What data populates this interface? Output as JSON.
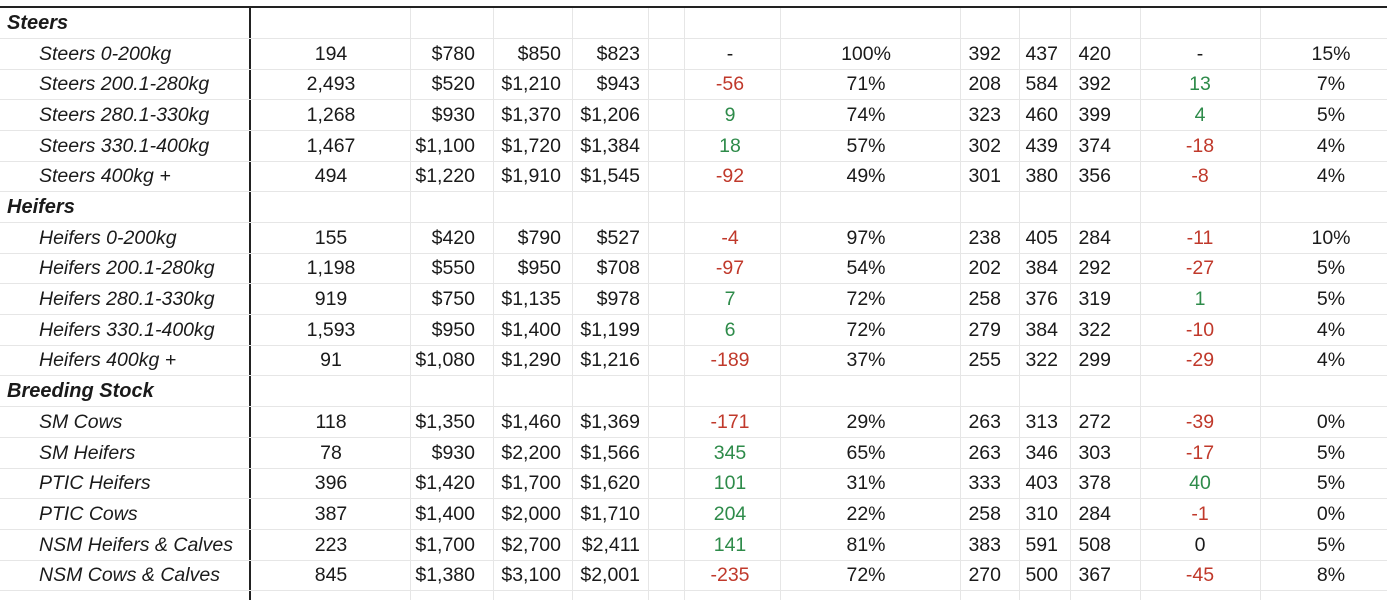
{
  "sections": [
    {
      "title": "Steers",
      "rows": [
        {
          "label": "Steers 0-200kg",
          "head": "194",
          "min": "$780",
          "max": "$850",
          "avg": "$823",
          "change": "-",
          "pct1": "100%",
          "c1": "392",
          "c2": "437",
          "c3": "420",
          "change2": "-",
          "pct2": "15%"
        },
        {
          "label": "Steers 200.1-280kg",
          "head": "2,493",
          "min": "$520",
          "max": "$1,210",
          "avg": "$943",
          "change": "-56",
          "pct1": "71%",
          "c1": "208",
          "c2": "584",
          "c3": "392",
          "change2": "13",
          "pct2": "7%"
        },
        {
          "label": "Steers 280.1-330kg",
          "head": "1,268",
          "min": "$930",
          "max": "$1,370",
          "avg": "$1,206",
          "change": "9",
          "pct1": "74%",
          "c1": "323",
          "c2": "460",
          "c3": "399",
          "change2": "4",
          "pct2": "5%"
        },
        {
          "label": "Steers 330.1-400kg",
          "head": "1,467",
          "min": "$1,100",
          "max": "$1,720",
          "avg": "$1,384",
          "change": "18",
          "pct1": "57%",
          "c1": "302",
          "c2": "439",
          "c3": "374",
          "change2": "-18",
          "pct2": "4%"
        },
        {
          "label": "Steers 400kg +",
          "head": "494",
          "min": "$1,220",
          "max": "$1,910",
          "avg": "$1,545",
          "change": "-92",
          "pct1": "49%",
          "c1": "301",
          "c2": "380",
          "c3": "356",
          "change2": "-8",
          "pct2": "4%"
        }
      ]
    },
    {
      "title": "Heifers",
      "rows": [
        {
          "label": "Heifers 0-200kg",
          "head": "155",
          "min": "$420",
          "max": "$790",
          "avg": "$527",
          "change": "-4",
          "pct1": "97%",
          "c1": "238",
          "c2": "405",
          "c3": "284",
          "change2": "-11",
          "pct2": "10%"
        },
        {
          "label": "Heifers 200.1-280kg",
          "head": "1,198",
          "min": "$550",
          "max": "$950",
          "avg": "$708",
          "change": "-97",
          "pct1": "54%",
          "c1": "202",
          "c2": "384",
          "c3": "292",
          "change2": "-27",
          "pct2": "5%"
        },
        {
          "label": "Heifers 280.1-330kg",
          "head": "919",
          "min": "$750",
          "max": "$1,135",
          "avg": "$978",
          "change": "7",
          "pct1": "72%",
          "c1": "258",
          "c2": "376",
          "c3": "319",
          "change2": "1",
          "pct2": "5%"
        },
        {
          "label": "Heifers 330.1-400kg",
          "head": "1,593",
          "min": "$950",
          "max": "$1,400",
          "avg": "$1,199",
          "change": "6",
          "pct1": "72%",
          "c1": "279",
          "c2": "384",
          "c3": "322",
          "change2": "-10",
          "pct2": "4%"
        },
        {
          "label": "Heifers 400kg +",
          "head": "91",
          "min": "$1,080",
          "max": "$1,290",
          "avg": "$1,216",
          "change": "-189",
          "pct1": "37%",
          "c1": "255",
          "c2": "322",
          "c3": "299",
          "change2": "-29",
          "pct2": "4%"
        }
      ]
    },
    {
      "title": "Breeding Stock",
      "rows": [
        {
          "label": "SM Cows",
          "head": "118",
          "min": "$1,350",
          "max": "$1,460",
          "avg": "$1,369",
          "change": "-171",
          "pct1": "29%",
          "c1": "263",
          "c2": "313",
          "c3": "272",
          "change2": "-39",
          "pct2": "0%"
        },
        {
          "label": "SM Heifers",
          "head": "78",
          "min": "$930",
          "max": "$2,200",
          "avg": "$1,566",
          "change": "345",
          "pct1": "65%",
          "c1": "263",
          "c2": "346",
          "c3": "303",
          "change2": "-17",
          "pct2": "5%"
        },
        {
          "label": "PTIC Heifers",
          "head": "396",
          "min": "$1,420",
          "max": "$1,700",
          "avg": "$1,620",
          "change": "101",
          "pct1": "31%",
          "c1": "333",
          "c2": "403",
          "c3": "378",
          "change2": "40",
          "pct2": "5%"
        },
        {
          "label": "PTIC Cows",
          "head": "387",
          "min": "$1,400",
          "max": "$2,000",
          "avg": "$1,710",
          "change": "204",
          "pct1": "22%",
          "c1": "258",
          "c2": "310",
          "c3": "284",
          "change2": "-1",
          "pct2": "0%"
        },
        {
          "label": "NSM Heifers & Calves",
          "head": "223",
          "min": "$1,700",
          "max": "$2,700",
          "avg": "$2,411",
          "change": "141",
          "pct1": "81%",
          "c1": "383",
          "c2": "591",
          "c3": "508",
          "change2": "0",
          "pct2": "5%"
        },
        {
          "label": "NSM Cows & Calves",
          "head": "845",
          "min": "$1,380",
          "max": "$3,100",
          "avg": "$2,001",
          "change": "-235",
          "pct1": "72%",
          "c1": "270",
          "c2": "500",
          "c3": "367",
          "change2": "-45",
          "pct2": "8%"
        }
      ]
    }
  ],
  "colors": {
    "positive": "#2e8b4a",
    "negative": "#c0392b",
    "neutral": "#1a1a1a",
    "border": "#222222",
    "gridline": "#e6e6e6"
  }
}
